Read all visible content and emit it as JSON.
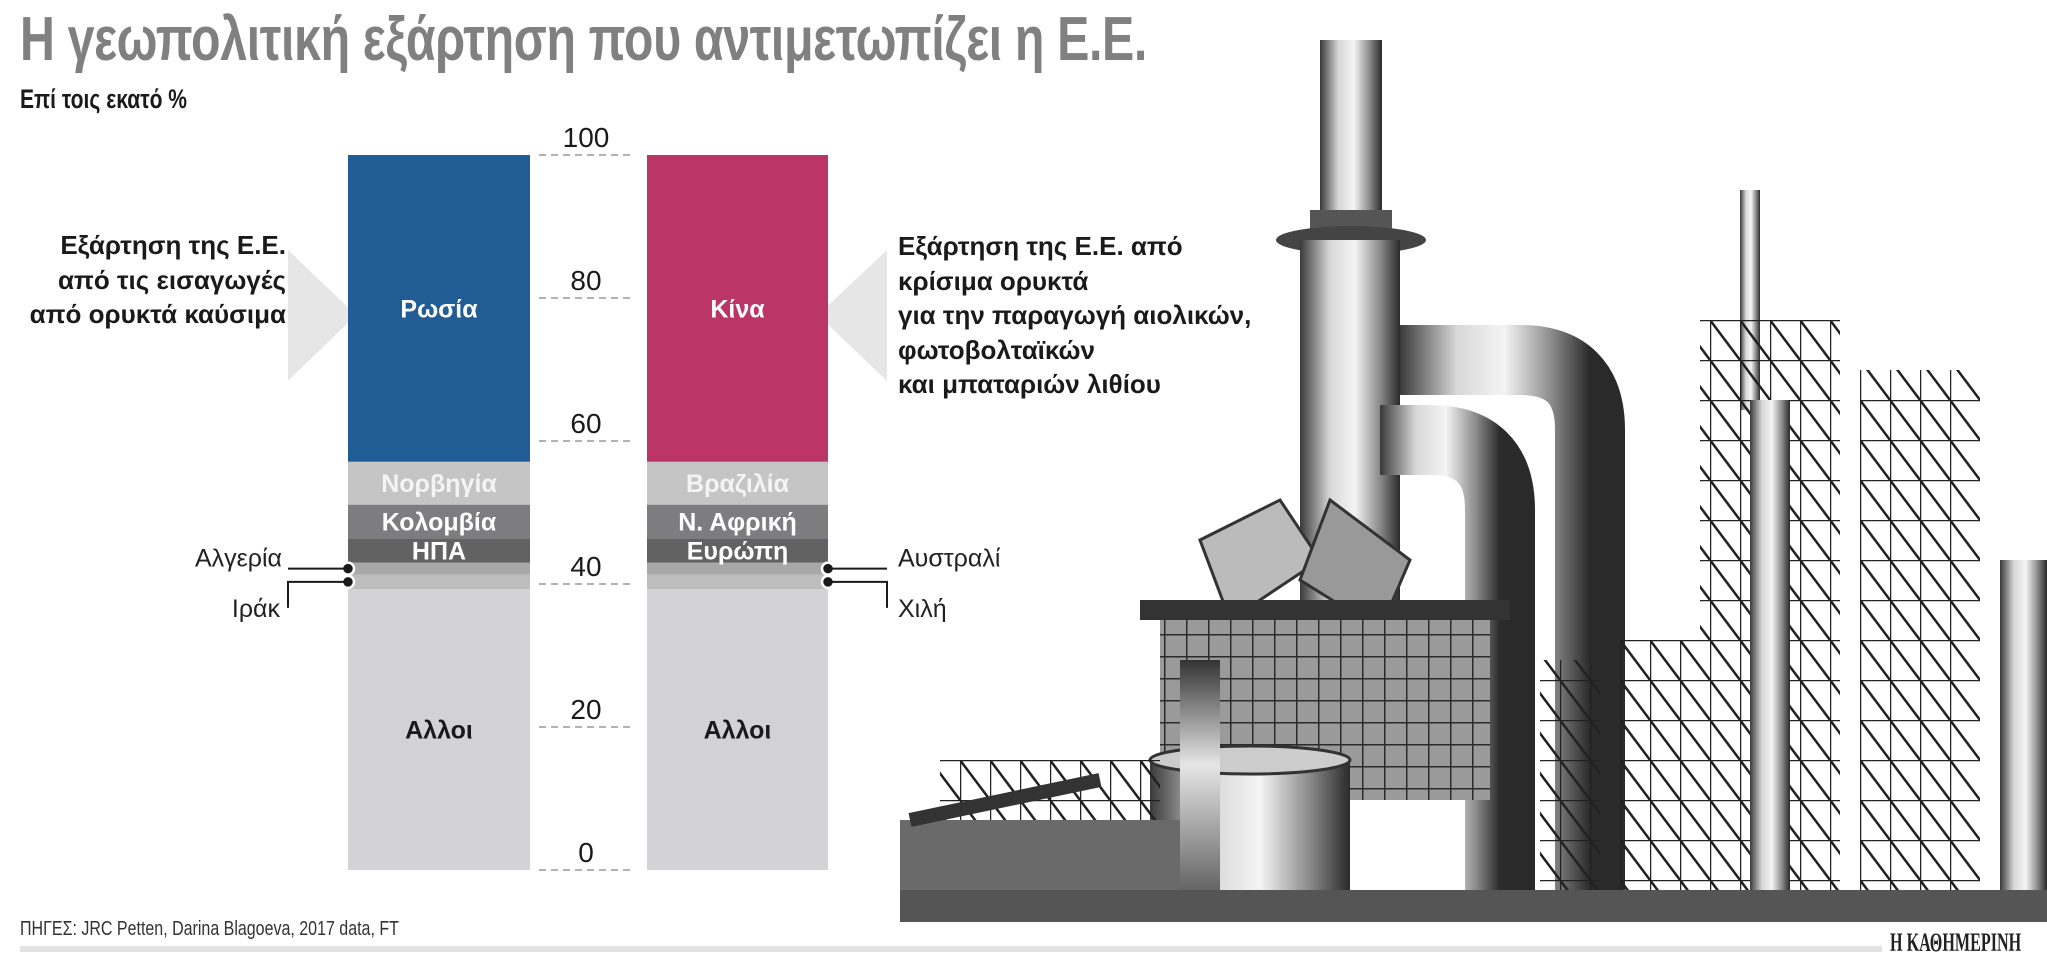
{
  "title": "Η γεωπολιτική εξάρτηση που αντιμετωπίζει η Ε.Ε.",
  "subtitle": "Επί τοις εκατό %",
  "annotations": {
    "left": [
      "Εξάρτηση της Ε.Ε.",
      "από τις εισαγωγές",
      "από ορυκτά καύσιμα"
    ],
    "right": [
      "Εξάρτηση της Ε.Ε. από",
      "κρίσιμα ορυκτά",
      "για την παραγωγή αιολικών,",
      "φωτοβολταϊκών",
      "και μπαταριών λιθίου"
    ]
  },
  "source": "ΠΗΓΕΣ: JRC Petten, Darina Blagoeva, 2017 data, FT",
  "brand": "Η ΚΑΘΗΜΕΡΙΝΗ",
  "photo_icon": "industrial-refinery-photo",
  "chart_data": {
    "type": "stacked-bar",
    "ylim": [
      0,
      100
    ],
    "yticks": [
      0,
      20,
      40,
      60,
      80,
      100
    ],
    "grid": "dashed ticks between bars",
    "bars": [
      {
        "segments": [
          {
            "label": "Αλλοι",
            "value": 39.3,
            "color": "#d3d3d5",
            "text_color": "#1a1a1a"
          },
          {
            "label": "Ιράκ",
            "value": 2.0,
            "color": "#bdbdbe",
            "outside": true
          },
          {
            "label": "Αλγερία",
            "value": 1.7,
            "color": "#a8a8a9",
            "outside": true
          },
          {
            "label": "ΗΠΑ",
            "value": 3.4,
            "color": "#626263",
            "text_color": "#ffffff"
          },
          {
            "label": "Κολομβία",
            "value": 4.7,
            "color": "#7d7d7f",
            "text_color": "#ffffff"
          },
          {
            "label": "Νορβηγία",
            "value": 6.0,
            "color": "#c6c5c6",
            "text_color": "#f4f4f4"
          },
          {
            "label": "Ρωσία",
            "value": 42.9,
            "color": "#215d94",
            "text_color": "#ffffff"
          }
        ]
      },
      {
        "segments": [
          {
            "label": "Αλλοι",
            "value": 39.3,
            "color": "#d3d3d5",
            "text_color": "#1a1a1a"
          },
          {
            "label": "Χιλή",
            "value": 2.0,
            "color": "#bdbdbe",
            "outside": true
          },
          {
            "label": "Αυστραλία",
            "value": 1.7,
            "color": "#a8a8a9",
            "outside": true
          },
          {
            "label": "Ευρώπη",
            "value": 3.4,
            "color": "#626263",
            "text_color": "#ffffff"
          },
          {
            "label": "Ν. Αφρική",
            "value": 4.7,
            "color": "#7d7d7f",
            "text_color": "#ffffff"
          },
          {
            "label": "Βραζιλία",
            "value": 6.0,
            "color": "#c6c5c6",
            "text_color": "#f4f4f4"
          },
          {
            "label": "Κίνα",
            "value": 42.9,
            "color": "#bb3566",
            "text_color": "#ffffff"
          }
        ]
      }
    ]
  }
}
